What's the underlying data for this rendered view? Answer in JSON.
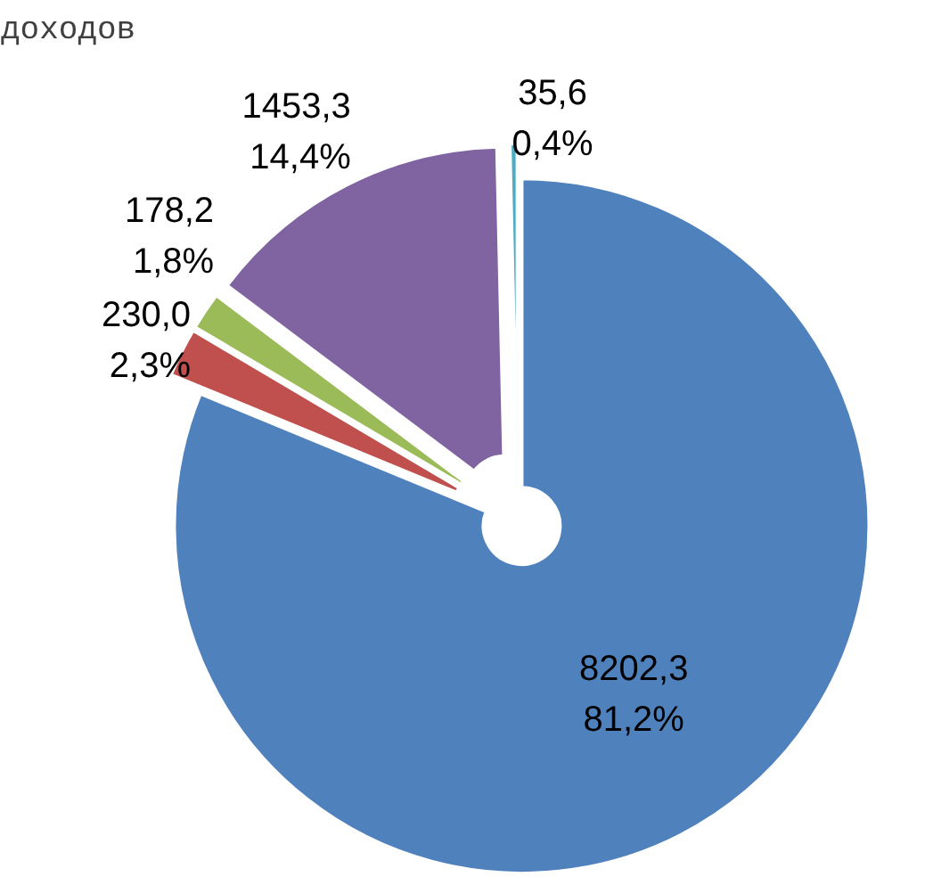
{
  "chart_data": {
    "type": "pie",
    "title": "доходов",
    "categories": [
      null,
      null,
      null,
      null,
      null
    ],
    "values": [
      8202.3,
      230.0,
      178.2,
      1453.3,
      35.6
    ],
    "colors": [
      "#4f81bd",
      "#c0504d",
      "#9bbb59",
      "#8064a2",
      "#4bacc6"
    ],
    "value_labels": [
      "8202,3\n81,2%",
      "230,0\n2,3%",
      "178,2\n1,8%",
      "1453,3\n14,4%",
      "35,6\n0,4%"
    ]
  }
}
